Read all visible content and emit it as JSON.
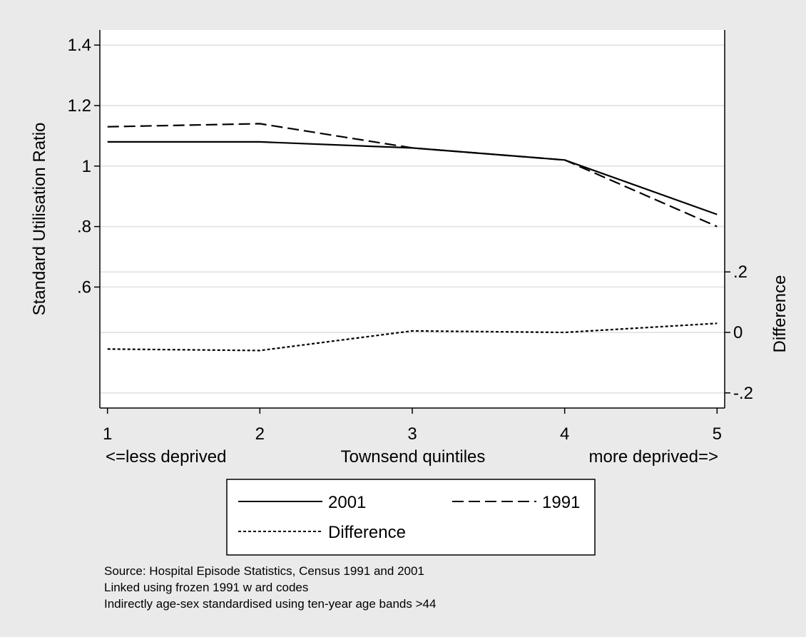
{
  "chart_data": {
    "type": "line",
    "x": [
      1,
      2,
      3,
      4,
      5
    ],
    "xlim": [
      0.95,
      5.05
    ],
    "x_tick_labels": [
      "1",
      "2",
      "3",
      "4",
      "5"
    ],
    "x_sublabels": {
      "left": "<=less deprived",
      "center": "Townsend quintiles",
      "right": "more deprived=>"
    },
    "ylabel": "Standard Utilisation Ratio",
    "ylim": [
      0.2,
      1.45
    ],
    "y_ticks": [
      0.6,
      0.8,
      1.0,
      1.2,
      1.4
    ],
    "y_tick_labels": [
      ".6",
      ".8",
      "1",
      "1.2",
      "1.4"
    ],
    "y2label": "Difference",
    "y2lim": [
      -0.25,
      1.0
    ],
    "y2_ticks": [
      -0.2,
      0,
      0.2
    ],
    "y2_tick_labels": [
      "-.2",
      "0",
      ".2"
    ],
    "gridlines_at": [
      -0.2,
      0,
      0.2,
      0.6,
      0.8,
      1.0,
      1.2,
      1.4
    ],
    "grid": true,
    "series": [
      {
        "name": "2001",
        "axis": "left",
        "style": "solid",
        "values": [
          1.08,
          1.08,
          1.06,
          1.02,
          0.84
        ]
      },
      {
        "name": "1991",
        "axis": "left",
        "style": "dashed",
        "values": [
          1.13,
          1.14,
          1.06,
          1.02,
          0.8
        ]
      },
      {
        "name": "Difference",
        "axis": "right",
        "style": "dotted",
        "values": [
          -0.055,
          -0.06,
          0.005,
          0.0,
          0.03
        ]
      }
    ],
    "legend_placement": "bottom",
    "notes": [
      "Source: Hospital Episode Statistics, Census 1991 and 2001",
      "Linked using frozen 1991 w ard codes",
      "Indirectly age-sex standardised using ten-year age bands >44"
    ],
    "colors": {
      "background": "#eaeaea",
      "plot": "#ffffff",
      "grid": "#e6e6e6",
      "line": "#000000"
    }
  }
}
